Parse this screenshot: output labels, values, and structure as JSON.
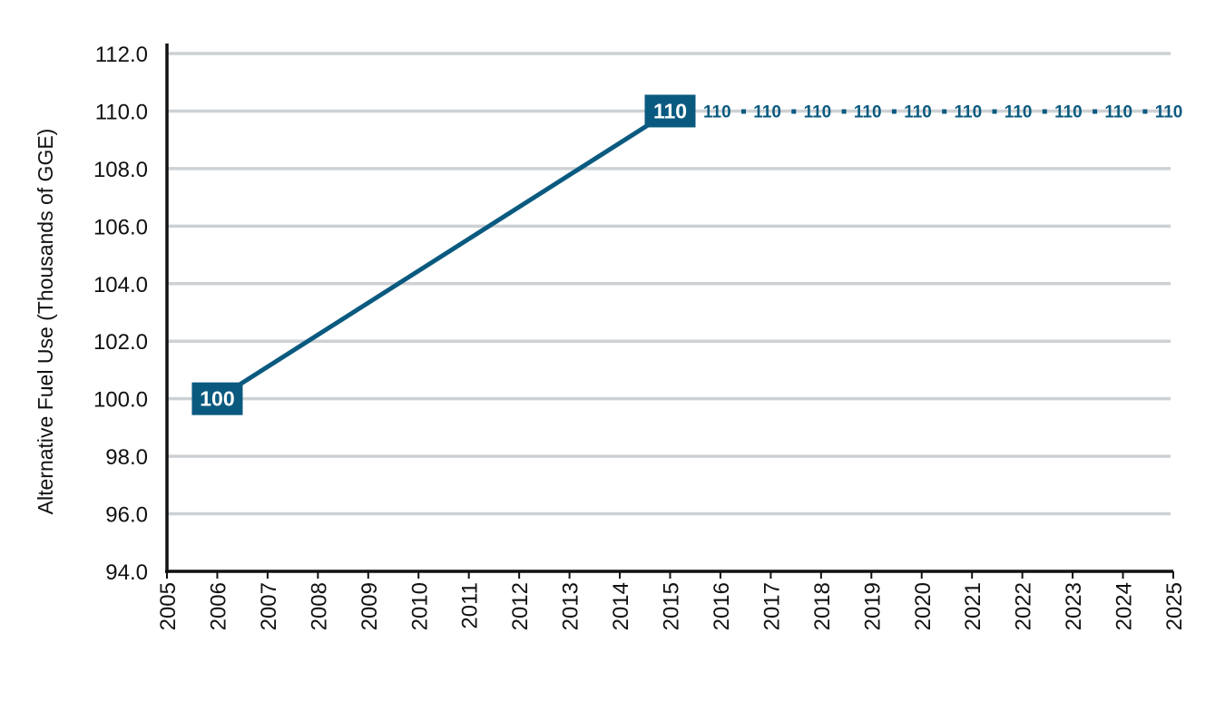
{
  "chart_data": {
    "type": "line",
    "title": "",
    "xlabel": "",
    "ylabel": "Alternative Fuel Use (Thousands of GGE)",
    "x": [
      2005,
      2006,
      2007,
      2008,
      2009,
      2010,
      2011,
      2012,
      2013,
      2014,
      2015,
      2016,
      2017,
      2018,
      2019,
      2020,
      2021,
      2022,
      2023,
      2024,
      2025
    ],
    "xlim": [
      2005,
      2025
    ],
    "ylim": [
      94,
      112
    ],
    "y_ticks": [
      "94.0",
      "96.0",
      "98.0",
      "100.0",
      "102.0",
      "104.0",
      "106.0",
      "108.0",
      "110.0",
      "112.0"
    ],
    "grid": true,
    "series": [
      {
        "color": "#0a5a80",
        "points": [
          {
            "x": 2006,
            "y": 100
          },
          {
            "x": 2015,
            "y": 110
          }
        ]
      }
    ],
    "point_labels": [
      {
        "x": 2006,
        "y": 100,
        "text": "100"
      },
      {
        "x": 2015,
        "y": 110,
        "text": "110"
      }
    ],
    "projection_labels": {
      "values": [
        "110",
        "110",
        "110",
        "110",
        "110",
        "110",
        "110",
        "110",
        "110",
        "110"
      ],
      "y": 110,
      "color": "#0a5a80"
    }
  },
  "colors": {
    "line": "#0a5a80",
    "grid": "#cdd1d4",
    "axis": "#111111"
  }
}
